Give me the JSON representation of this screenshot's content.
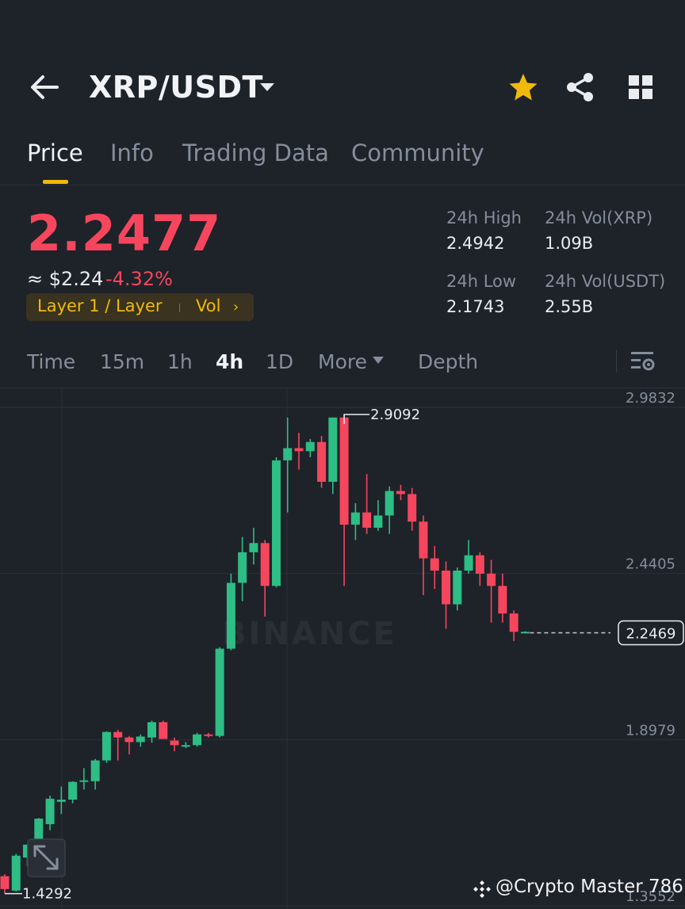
{
  "header": {
    "pair": "XRP/USDT",
    "icons": {
      "back": "back-arrow-icon",
      "caret": "caret-down-icon",
      "favorite": "star-icon",
      "share": "share-icon",
      "menu": "grid-icon"
    },
    "favorite_color": "#f0b90b"
  },
  "tabs": [
    {
      "label": "Price",
      "active": true
    },
    {
      "label": "Info",
      "active": false
    },
    {
      "label": "Trading Data",
      "active": false
    },
    {
      "label": "Community",
      "active": false
    }
  ],
  "ticker": {
    "last_price": "2.2477",
    "fiat_value": "≈ $2.24",
    "change_pct": "-4.32%",
    "tag_category": "Layer 1 / Layer",
    "tag_vol": "Vol",
    "tag_chevron": "›",
    "down_color": "#f6465d",
    "up_color": "#2ebd85"
  },
  "stats": {
    "high_label": "24h High",
    "high_value": "2.4942",
    "vol_base_label": "24h Vol(XRP)",
    "vol_base_value": "1.09B",
    "low_label": "24h Low",
    "low_value": "2.1743",
    "vol_quote_label": "24h Vol(USDT)",
    "vol_quote_value": "2.55B"
  },
  "intervals": {
    "items": [
      "Time",
      "15m",
      "1h",
      "4h",
      "1D"
    ],
    "active": "4h",
    "more": "More",
    "depth": "Depth",
    "settings_icon": "chart-settings-icon"
  },
  "chart_data": {
    "type": "candlestick",
    "interval": "4h",
    "y_ticks": [
      "2.9832",
      "2.4405",
      "1.8979",
      "1.3552"
    ],
    "ylim": [
      1.3552,
      2.9832
    ],
    "high_marker": "2.9092",
    "low_marker": "1.4292",
    "current_price_label": "2.2469",
    "watermark": "BINANCE",
    "expand_icon": "expand-icon",
    "candles": [
      [
        1.452,
        1.458,
        1.395,
        1.41
      ],
      [
        1.405,
        1.525,
        1.402,
        1.519
      ],
      [
        1.513,
        1.557,
        1.485,
        1.555
      ],
      [
        1.55,
        1.642,
        1.548,
        1.64
      ],
      [
        1.622,
        1.715,
        1.602,
        1.705
      ],
      [
        1.695,
        1.745,
        1.655,
        1.702
      ],
      [
        1.702,
        1.762,
        1.69,
        1.76
      ],
      [
        1.76,
        1.805,
        1.735,
        1.765
      ],
      [
        1.762,
        1.835,
        1.735,
        1.83
      ],
      [
        1.83,
        1.925,
        1.822,
        1.923
      ],
      [
        1.923,
        1.93,
        1.83,
        1.905
      ],
      [
        1.905,
        1.91,
        1.85,
        1.89
      ],
      [
        1.89,
        1.915,
        1.875,
        1.908
      ],
      [
        1.905,
        1.96,
        1.888,
        1.955
      ],
      [
        1.955,
        1.96,
        1.9,
        1.9
      ],
      [
        1.895,
        1.905,
        1.86,
        1.88
      ],
      [
        1.88,
        1.89,
        1.87,
        1.88
      ],
      [
        1.88,
        1.92,
        1.875,
        1.915
      ],
      [
        1.915,
        1.92,
        1.905,
        1.91
      ],
      [
        1.91,
        2.2,
        1.905,
        2.195
      ],
      [
        2.195,
        2.44,
        2.19,
        2.41
      ],
      [
        2.41,
        2.56,
        2.35,
        2.51
      ],
      [
        2.51,
        2.59,
        2.47,
        2.54
      ],
      [
        2.54,
        2.55,
        2.3,
        2.4
      ],
      [
        2.4,
        2.82,
        2.395,
        2.81
      ],
      [
        2.81,
        2.95,
        2.64,
        2.85
      ],
      [
        2.85,
        2.9,
        2.78,
        2.84
      ],
      [
        2.84,
        2.88,
        2.82,
        2.87
      ],
      [
        2.87,
        2.89,
        2.72,
        2.74
      ],
      [
        2.74,
        2.95,
        2.7,
        2.95
      ],
      [
        2.95,
        2.96,
        2.4,
        2.6
      ],
      [
        2.6,
        2.67,
        2.55,
        2.64
      ],
      [
        2.64,
        2.765,
        2.57,
        2.59
      ],
      [
        2.59,
        2.68,
        2.58,
        2.63
      ],
      [
        2.63,
        2.725,
        2.57,
        2.71
      ],
      [
        2.71,
        2.73,
        2.68,
        2.7
      ],
      [
        2.7,
        2.72,
        2.58,
        2.61
      ],
      [
        2.61,
        2.63,
        2.37,
        2.49
      ],
      [
        2.49,
        2.53,
        2.39,
        2.45
      ],
      [
        2.45,
        2.48,
        2.26,
        2.34
      ],
      [
        2.34,
        2.46,
        2.32,
        2.45
      ],
      [
        2.45,
        2.55,
        2.44,
        2.5
      ],
      [
        2.5,
        2.51,
        2.4,
        2.44
      ],
      [
        2.44,
        2.485,
        2.28,
        2.4
      ],
      [
        2.4,
        2.44,
        2.28,
        2.31
      ],
      [
        2.31,
        2.32,
        2.22,
        2.25
      ],
      [
        2.248,
        2.252,
        2.245,
        2.25
      ]
    ]
  },
  "watermark_text": "@Crypto Master 786"
}
